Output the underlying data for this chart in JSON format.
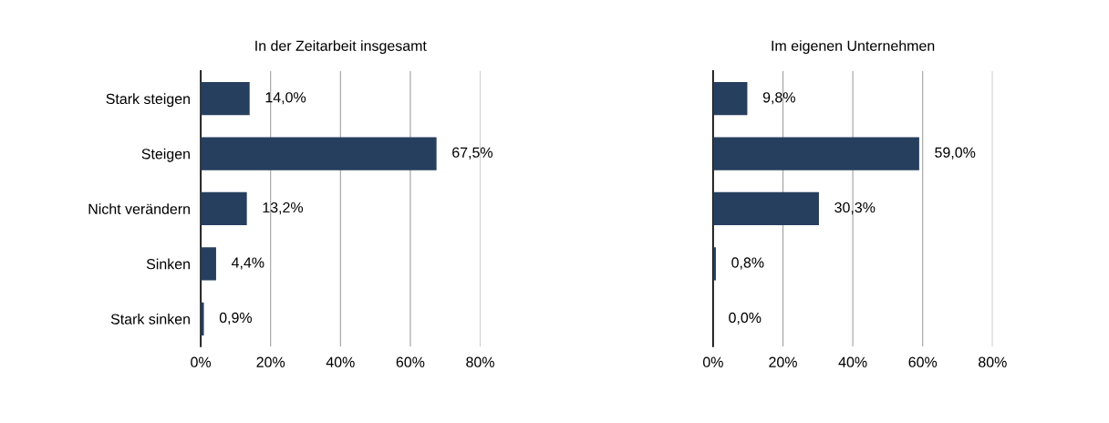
{
  "chart_data": [
    {
      "type": "bar",
      "orientation": "horizontal",
      "title": "In der Zeitarbeit insgesamt",
      "categories": [
        "Stark steigen",
        "Steigen",
        "Nicht verändern",
        "Sinken",
        "Stark sinken"
      ],
      "values": [
        14.0,
        67.5,
        13.2,
        4.4,
        0.9
      ],
      "value_labels": [
        "14,0%",
        "67,5%",
        "13,2%",
        "4,4%",
        "0,9%"
      ],
      "color": "#263f5e",
      "xlim": [
        0,
        80
      ],
      "xticks": [
        {
          "value": 0,
          "label": "0%"
        },
        {
          "value": 20,
          "label": "20%"
        },
        {
          "value": 40,
          "label": "40%"
        },
        {
          "value": 60,
          "label": "60%"
        },
        {
          "value": 80,
          "label": "80%"
        }
      ],
      "grid": "x",
      "legend": false
    },
    {
      "type": "bar",
      "orientation": "horizontal",
      "title": "Im eigenen Unternehmen",
      "categories": [
        null,
        null,
        null,
        null,
        null
      ],
      "values": [
        9.8,
        59.0,
        30.3,
        0.8,
        0.0
      ],
      "value_labels": [
        "9,8%",
        "59,0%",
        "30,3%",
        "0,8%",
        "0,0%"
      ],
      "color": "#263f5e",
      "xlim": [
        0,
        80
      ],
      "xticks": [
        {
          "value": 0,
          "label": "0%"
        },
        {
          "value": 20,
          "label": "20%"
        },
        {
          "value": 40,
          "label": "40%"
        },
        {
          "value": 60,
          "label": "60%"
        },
        {
          "value": 80,
          "label": "80%"
        }
      ],
      "grid": "x",
      "legend": false
    }
  ]
}
